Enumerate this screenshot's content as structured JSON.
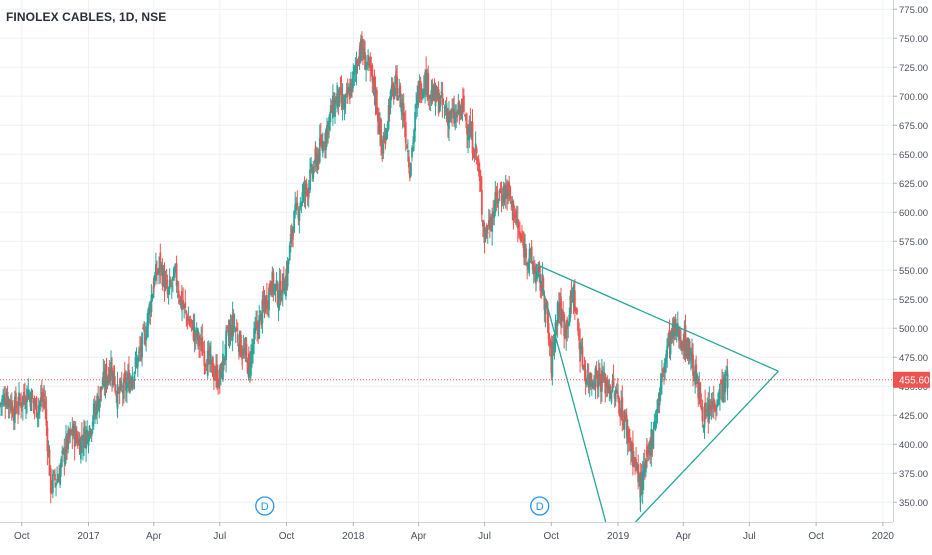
{
  "chart_data": {
    "type": "candlestick",
    "title": "FINOLEX CABLES, 1D, NSE",
    "ylim": [
      333,
      783
    ],
    "xlim": [
      "2016-09-01",
      "2020-01-15"
    ],
    "grid": true,
    "y_ticks": [
      350,
      375,
      400,
      425,
      450,
      475,
      500,
      525,
      550,
      575,
      600,
      625,
      650,
      675,
      700,
      725,
      750,
      775
    ],
    "y_tick_labels": [
      "350.00",
      "375.00",
      "400.00",
      "425.00",
      "450.00",
      "475.00",
      "500.00",
      "525.00",
      "550.00",
      "575.00",
      "600.00",
      "625.00",
      "650.00",
      "675.00",
      "700.00",
      "725.00",
      "750.00",
      "775.00"
    ],
    "x_ticks": [
      {
        "date": "2016-10-01",
        "label": "Oct"
      },
      {
        "date": "2017-01-01",
        "label": "2017"
      },
      {
        "date": "2017-04-01",
        "label": "Apr"
      },
      {
        "date": "2017-07-01",
        "label": "Jul"
      },
      {
        "date": "2017-10-01",
        "label": "Oct"
      },
      {
        "date": "2018-01-01",
        "label": "2018"
      },
      {
        "date": "2018-04-01",
        "label": "Apr"
      },
      {
        "date": "2018-07-01",
        "label": "Jul"
      },
      {
        "date": "2018-10-01",
        "label": "Oct"
      },
      {
        "date": "2019-01-01",
        "label": "2019"
      },
      {
        "date": "2019-04-01",
        "label": "Apr"
      },
      {
        "date": "2019-07-01",
        "label": "Jul"
      },
      {
        "date": "2019-10-01",
        "label": "Oct"
      },
      {
        "date": "2020-01-01",
        "label": "2020"
      }
    ],
    "series": [
      {
        "values": [
          [
            "2016-09-01",
            435
          ],
          [
            "2016-09-10",
            442
          ],
          [
            "2016-09-20",
            430
          ],
          [
            "2016-10-01",
            438
          ],
          [
            "2016-10-10",
            446
          ],
          [
            "2016-10-20",
            432
          ],
          [
            "2016-11-01",
            440
          ],
          [
            "2016-11-10",
            365
          ],
          [
            "2016-11-20",
            372
          ],
          [
            "2016-12-01",
            398
          ],
          [
            "2016-12-10",
            410
          ],
          [
            "2016-12-20",
            402
          ],
          [
            "2017-01-01",
            412
          ],
          [
            "2017-01-10",
            430
          ],
          [
            "2017-01-20",
            450
          ],
          [
            "2017-02-01",
            468
          ],
          [
            "2017-02-10",
            442
          ],
          [
            "2017-02-20",
            448
          ],
          [
            "2017-03-01",
            460
          ],
          [
            "2017-03-10",
            472
          ],
          [
            "2017-03-20",
            495
          ],
          [
            "2017-04-01",
            540
          ],
          [
            "2017-04-10",
            555
          ],
          [
            "2017-04-20",
            528
          ],
          [
            "2017-05-01",
            545
          ],
          [
            "2017-05-10",
            520
          ],
          [
            "2017-05-20",
            505
          ],
          [
            "2017-06-01",
            490
          ],
          [
            "2017-06-10",
            478
          ],
          [
            "2017-06-20",
            465
          ],
          [
            "2017-07-01",
            455
          ],
          [
            "2017-07-10",
            488
          ],
          [
            "2017-07-20",
            505
          ],
          [
            "2017-08-01",
            480
          ],
          [
            "2017-08-10",
            468
          ],
          [
            "2017-08-20",
            498
          ],
          [
            "2017-09-01",
            520
          ],
          [
            "2017-09-10",
            540
          ],
          [
            "2017-09-20",
            528
          ],
          [
            "2017-10-01",
            545
          ],
          [
            "2017-10-10",
            590
          ],
          [
            "2017-10-20",
            610
          ],
          [
            "2017-11-01",
            625
          ],
          [
            "2017-11-10",
            645
          ],
          [
            "2017-11-20",
            660
          ],
          [
            "2017-12-01",
            685
          ],
          [
            "2017-12-10",
            700
          ],
          [
            "2017-12-20",
            690
          ],
          [
            "2018-01-01",
            715
          ],
          [
            "2018-01-10",
            742
          ],
          [
            "2018-01-20",
            728
          ],
          [
            "2018-02-01",
            700
          ],
          [
            "2018-02-10",
            650
          ],
          [
            "2018-02-20",
            695
          ],
          [
            "2018-03-01",
            710
          ],
          [
            "2018-03-10",
            690
          ],
          [
            "2018-03-20",
            640
          ],
          [
            "2018-04-01",
            705
          ],
          [
            "2018-04-10",
            715
          ],
          [
            "2018-04-20",
            700
          ],
          [
            "2018-05-01",
            695
          ],
          [
            "2018-05-10",
            685
          ],
          [
            "2018-05-20",
            680
          ],
          [
            "2018-06-01",
            690
          ],
          [
            "2018-06-10",
            670
          ],
          [
            "2018-06-20",
            650
          ],
          [
            "2018-07-01",
            580
          ],
          [
            "2018-07-10",
            595
          ],
          [
            "2018-07-20",
            615
          ],
          [
            "2018-08-01",
            620
          ],
          [
            "2018-08-10",
            600
          ],
          [
            "2018-08-20",
            575
          ],
          [
            "2018-09-01",
            560
          ],
          [
            "2018-09-10",
            545
          ],
          [
            "2018-09-20",
            535
          ],
          [
            "2018-10-01",
            470
          ],
          [
            "2018-10-10",
            520
          ],
          [
            "2018-10-20",
            500
          ],
          [
            "2018-11-01",
            530
          ],
          [
            "2018-11-10",
            480
          ],
          [
            "2018-11-20",
            455
          ],
          [
            "2018-12-01",
            460
          ],
          [
            "2018-12-10",
            455
          ],
          [
            "2018-12-20",
            450
          ],
          [
            "2019-01-01",
            440
          ],
          [
            "2019-01-10",
            420
          ],
          [
            "2019-01-20",
            395
          ],
          [
            "2019-02-01",
            362
          ],
          [
            "2019-02-10",
            385
          ],
          [
            "2019-02-20",
            420
          ],
          [
            "2019-03-01",
            450
          ],
          [
            "2019-03-10",
            485
          ],
          [
            "2019-03-20",
            498
          ],
          [
            "2019-04-01",
            490
          ],
          [
            "2019-04-10",
            480
          ],
          [
            "2019-04-20",
            450
          ],
          [
            "2019-05-01",
            420
          ],
          [
            "2019-05-10",
            432
          ],
          [
            "2019-05-20",
            445
          ],
          [
            "2019-06-01",
            455.6
          ]
        ]
      }
    ],
    "last_price": 455.6,
    "last_price_label": "455.60",
    "trendlines": [
      {
        "from": [
          "2018-09-10",
          555
        ],
        "to": [
          "2019-08-10",
          463
        ]
      },
      {
        "from": [
          "2018-09-10",
          555
        ],
        "to": [
          "2018-12-15",
          333
        ]
      },
      {
        "from": [
          "2019-01-25",
          333
        ],
        "to": [
          "2019-08-10",
          463
        ]
      }
    ],
    "markers": [
      {
        "date": "2017-09-01",
        "label": "D"
      },
      {
        "date": "2018-09-15",
        "label": "D"
      }
    ],
    "colors": {
      "up": "#26a69a",
      "down": "#ef5350",
      "line": "#26a69a",
      "price": "#ef5350",
      "grid": "#eef1f5",
      "axis_text": "#4a4f5c"
    }
  }
}
